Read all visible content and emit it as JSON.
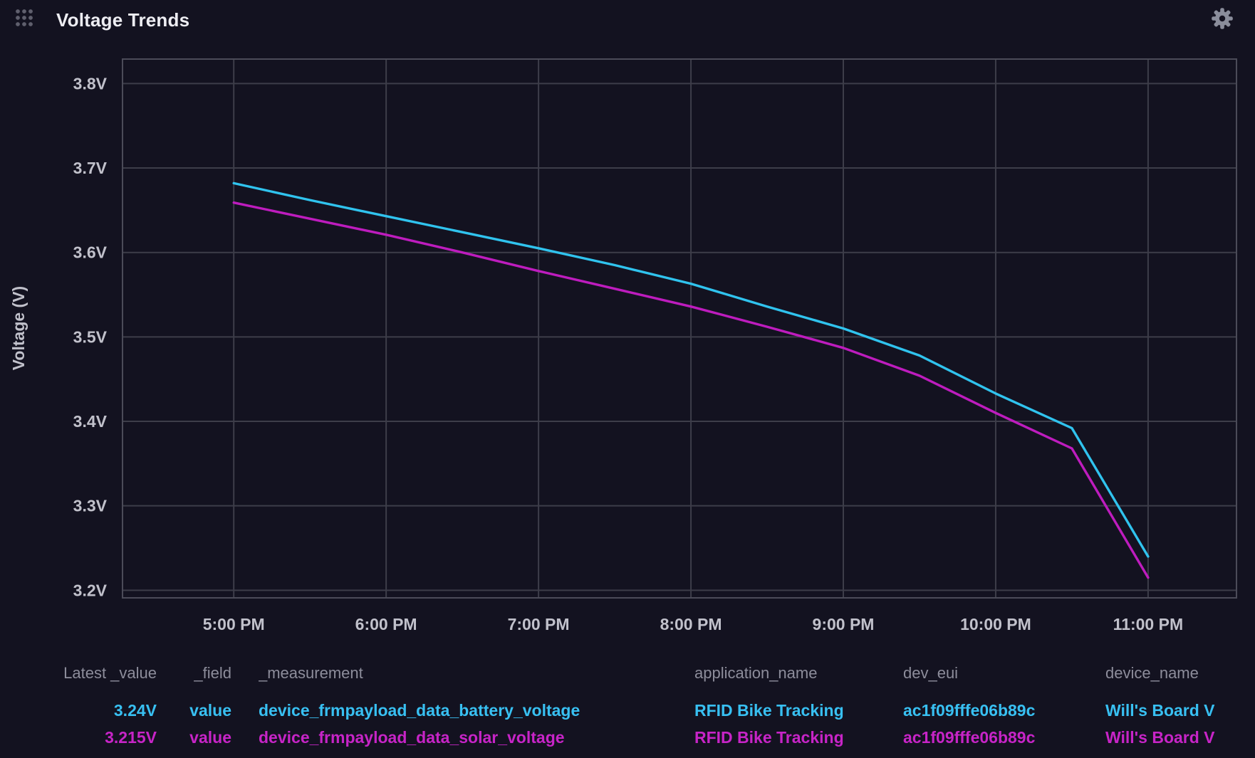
{
  "header": {
    "title": "Voltage Trends"
  },
  "icons": {
    "drag_handle": "drag-handle-dots-icon",
    "settings": "gear-icon"
  },
  "colors": {
    "background": "#131220",
    "grid": "#3D3D49",
    "plot_border": "#4B4B58",
    "tick_text": "#C1C1CB",
    "title_text": "#EDEDF2",
    "legend_header_text": "#8D8D9B",
    "battery_series": "#30C3EE",
    "solar_series": "#BE1CBE"
  },
  "chart_data": {
    "type": "line",
    "title": "Voltage Trends",
    "xlabel": "",
    "ylabel": "Voltage (V)",
    "x_unit": "hour_of_day",
    "xlim": [
      16.27,
      23.58
    ],
    "ylim": [
      3.191,
      3.829
    ],
    "grid": true,
    "x_ticks": [
      {
        "value": 17,
        "label": "5:00 PM"
      },
      {
        "value": 18,
        "label": "6:00 PM"
      },
      {
        "value": 19,
        "label": "7:00 PM"
      },
      {
        "value": 20,
        "label": "8:00 PM"
      },
      {
        "value": 21,
        "label": "9:00 PM"
      },
      {
        "value": 22,
        "label": "10:00 PM"
      },
      {
        "value": 23,
        "label": "11:00 PM"
      }
    ],
    "y_ticks": [
      {
        "value": 3.2,
        "label": "3.2V"
      },
      {
        "value": 3.3,
        "label": "3.3V"
      },
      {
        "value": 3.4,
        "label": "3.4V"
      },
      {
        "value": 3.5,
        "label": "3.5V"
      },
      {
        "value": 3.6,
        "label": "3.6V"
      },
      {
        "value": 3.7,
        "label": "3.7V"
      },
      {
        "value": 3.8,
        "label": "3.8V"
      }
    ],
    "series": [
      {
        "name": "device_frmpayload_data_battery_voltage",
        "color": "#30C3EE",
        "x": [
          17,
          17.5,
          18,
          18.5,
          19,
          19.5,
          20,
          20.5,
          21,
          21.5,
          22,
          22.5,
          23
        ],
        "values": [
          3.682,
          3.662,
          3.643,
          3.624,
          3.605,
          3.585,
          3.563,
          3.536,
          3.51,
          3.478,
          3.433,
          3.392,
          3.24
        ]
      },
      {
        "name": "device_frmpayload_data_solar_voltage",
        "color": "#BE1CBE",
        "x": [
          17,
          17.5,
          18,
          18.5,
          19,
          19.5,
          20,
          20.5,
          21,
          21.5,
          22,
          22.5,
          23
        ],
        "values": [
          3.659,
          3.64,
          3.621,
          3.6,
          3.578,
          3.557,
          3.536,
          3.512,
          3.487,
          3.454,
          3.41,
          3.368,
          3.215
        ]
      }
    ]
  },
  "legend": {
    "columns": [
      {
        "key": "latest_value",
        "label": "Latest _value"
      },
      {
        "key": "field",
        "label": "_field"
      },
      {
        "key": "measurement",
        "label": "_measurement"
      },
      {
        "key": "application_name",
        "label": "application_name"
      },
      {
        "key": "dev_eui",
        "label": "dev_eui"
      },
      {
        "key": "device_name",
        "label": "device_name"
      }
    ],
    "rows": [
      {
        "latest_value": "3.24V",
        "field": "value",
        "measurement": "device_frmpayload_data_battery_voltage",
        "application_name": "RFID Bike Tracking",
        "dev_eui": "ac1f09fffe06b89c",
        "device_name": "Will's Board V",
        "color": "#38C0F2"
      },
      {
        "latest_value": "3.215V",
        "field": "value",
        "measurement": "device_frmpayload_data_solar_voltage",
        "application_name": "RFID Bike Tracking",
        "dev_eui": "ac1f09fffe06b89c",
        "device_name": "Will's Board V",
        "color": "#C724C7"
      }
    ]
  }
}
